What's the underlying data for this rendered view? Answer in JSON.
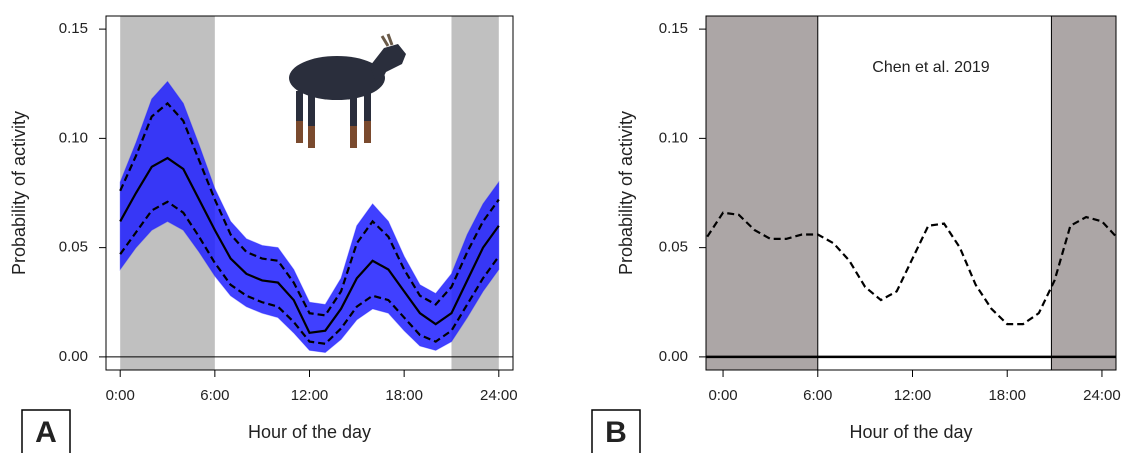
{
  "chart_data": [
    {
      "type": "line",
      "panel_label": "A",
      "x_label": "Hour of the day",
      "y_label": "Probability of activity",
      "xlim": [
        -0.9,
        24.9
      ],
      "ylim": [
        -0.006,
        0.156
      ],
      "xticks": [
        {
          "value": 0,
          "label": "0:00"
        },
        {
          "value": 6,
          "label": "6:00"
        },
        {
          "value": 12,
          "label": "12:00"
        },
        {
          "value": 18,
          "label": "18:00"
        },
        {
          "value": 24,
          "label": "24:00"
        }
      ],
      "yticks": [
        {
          "value": 0,
          "label": "0.00"
        },
        {
          "value": 0.05,
          "label": "0.05"
        },
        {
          "value": 0.1,
          "label": "0.10"
        },
        {
          "value": 0.15,
          "label": "0.15"
        }
      ],
      "zero_line": 0,
      "shaded": {
        "color": "#c0c0c0",
        "border": false,
        "spans": [
          [
            0,
            6
          ],
          [
            21,
            24
          ]
        ]
      },
      "x": [
        0,
        1,
        2,
        3,
        4,
        5,
        6,
        7,
        8,
        9,
        10,
        11,
        12,
        13,
        14,
        15,
        16,
        17,
        18,
        19,
        20,
        21,
        22,
        23,
        24
      ],
      "band": {
        "color": "#1e1eff",
        "upper": [
          0.08,
          0.098,
          0.118,
          0.126,
          0.116,
          0.097,
          0.077,
          0.062,
          0.054,
          0.051,
          0.05,
          0.04,
          0.025,
          0.024,
          0.036,
          0.06,
          0.07,
          0.062,
          0.046,
          0.033,
          0.029,
          0.038,
          0.056,
          0.07,
          0.08
        ],
        "lower": [
          0.04,
          0.05,
          0.058,
          0.062,
          0.058,
          0.048,
          0.037,
          0.028,
          0.023,
          0.02,
          0.018,
          0.011,
          0.003,
          0.002,
          0.008,
          0.017,
          0.022,
          0.02,
          0.012,
          0.005,
          0.003,
          0.007,
          0.018,
          0.03,
          0.04
        ]
      },
      "series": [
        {
          "color": "#000000",
          "dashed": false,
          "values": [
            0.062,
            0.075,
            0.087,
            0.091,
            0.086,
            0.072,
            0.058,
            0.045,
            0.038,
            0.035,
            0.034,
            0.026,
            0.011,
            0.012,
            0.022,
            0.036,
            0.044,
            0.04,
            0.03,
            0.02,
            0.015,
            0.02,
            0.035,
            0.05,
            0.06
          ]
        },
        {
          "color": "#000000",
          "dashed": true,
          "values": [
            0.076,
            0.092,
            0.11,
            0.116,
            0.108,
            0.09,
            0.072,
            0.056,
            0.048,
            0.045,
            0.044,
            0.034,
            0.02,
            0.019,
            0.03,
            0.052,
            0.062,
            0.055,
            0.04,
            0.028,
            0.024,
            0.032,
            0.048,
            0.062,
            0.072
          ]
        },
        {
          "color": "#000000",
          "dashed": true,
          "values": [
            0.047,
            0.057,
            0.067,
            0.071,
            0.066,
            0.055,
            0.043,
            0.033,
            0.028,
            0.025,
            0.023,
            0.016,
            0.007,
            0.006,
            0.013,
            0.023,
            0.028,
            0.026,
            0.018,
            0.01,
            0.007,
            0.012,
            0.024,
            0.036,
            0.046
          ]
        }
      ]
    },
    {
      "type": "line",
      "panel_label": "B",
      "x_label": "Hour of the day",
      "y_label": "Probability of activity",
      "annotation": "Chen et al. 2019",
      "xlim": [
        -1.08,
        24.89
      ],
      "ylim": [
        -0.006,
        0.156
      ],
      "xticks": [
        {
          "value": 0,
          "label": "0:00"
        },
        {
          "value": 6,
          "label": "6:00"
        },
        {
          "value": 12,
          "label": "12:00"
        },
        {
          "value": 18,
          "label": "18:00"
        },
        {
          "value": 24,
          "label": "24:00"
        }
      ],
      "yticks": [
        {
          "value": 0,
          "label": "0.00"
        },
        {
          "value": 0.05,
          "label": "0.05"
        },
        {
          "value": 0.1,
          "label": "0.10"
        },
        {
          "value": 0.15,
          "label": "0.15"
        }
      ],
      "zero_line": 0,
      "shaded": {
        "color": "#aca6a6",
        "border": true,
        "spans": [
          [
            -1.08,
            6
          ],
          [
            20.8,
            24.89
          ]
        ]
      },
      "x": [
        -1,
        0,
        1,
        2,
        3,
        4,
        5,
        6,
        7,
        8,
        9,
        10,
        11,
        12,
        13,
        14,
        15,
        16,
        17,
        18,
        19,
        20,
        21,
        22,
        23,
        24,
        24.9
      ],
      "series": [
        {
          "color": "#000000",
          "dashed": true,
          "values": [
            0.055,
            0.066,
            0.065,
            0.058,
            0.054,
            0.054,
            0.056,
            0.056,
            0.052,
            0.044,
            0.032,
            0.026,
            0.03,
            0.045,
            0.06,
            0.061,
            0.05,
            0.033,
            0.022,
            0.015,
            0.015,
            0.02,
            0.035,
            0.06,
            0.064,
            0.062,
            0.055
          ]
        }
      ]
    }
  ]
}
